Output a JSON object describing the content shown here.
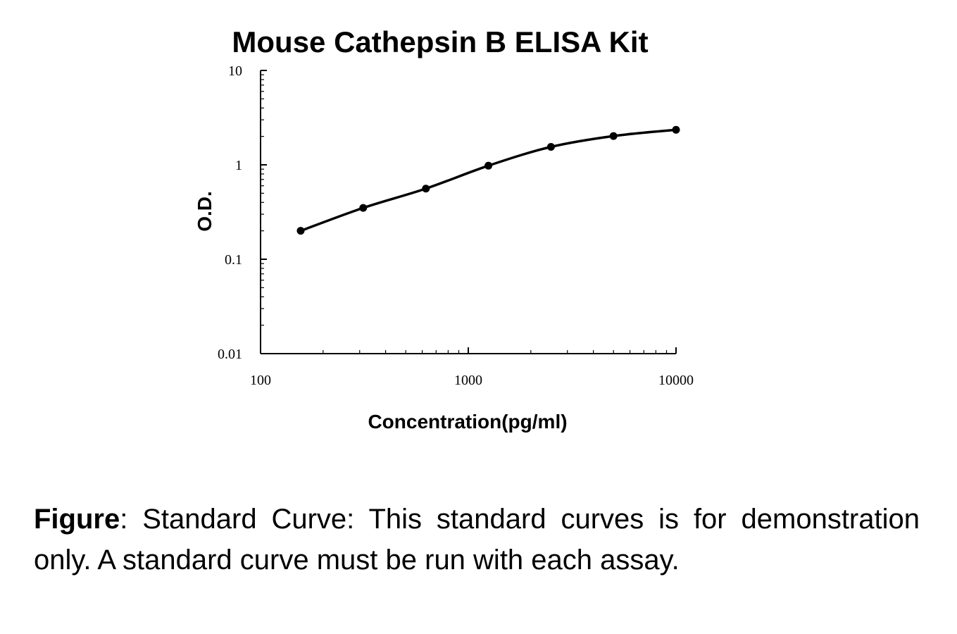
{
  "chart_data": {
    "type": "line",
    "title": "Mouse Cathepsin B ELISA Kit",
    "xlabel": "Concentration(pg/ml)",
    "ylabel": "O.D.",
    "x_scale": "log",
    "y_scale": "log",
    "xlim": [
      100,
      10000
    ],
    "ylim": [
      0.01,
      10
    ],
    "x_ticks": [
      "100",
      "1000",
      "10000"
    ],
    "y_ticks": [
      "0.01",
      "0.1",
      "1",
      "10"
    ],
    "grid": false,
    "legend": "none",
    "series": [
      {
        "x": [
          156,
          312,
          625,
          1250,
          2500,
          5000,
          10000
        ],
        "y": [
          0.2,
          0.35,
          0.56,
          0.98,
          1.55,
          2.02,
          2.35
        ]
      }
    ]
  },
  "caption": {
    "label": "Figure",
    "text": ": Standard Curve: This standard curves is for demonstration only. A standard curve must be run with each assay."
  }
}
